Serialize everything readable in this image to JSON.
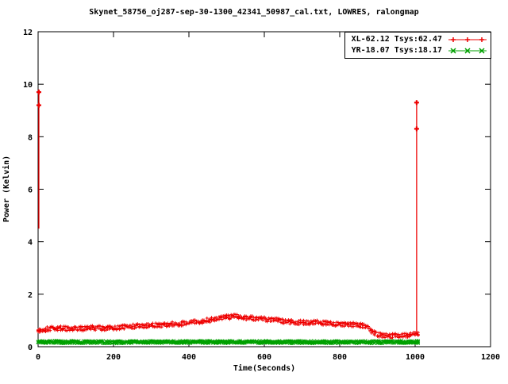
{
  "chart_data": {
    "type": "scatter",
    "title": "Skynet_58756_oj287-sep-30-1300_42341_50987_cal.txt, LOWRES, ralongmap",
    "xlabel": "Time(Seconds)",
    "ylabel": "Power (Kelvin)",
    "xlim": [
      0,
      1200
    ],
    "ylim": [
      0,
      12
    ],
    "xticks": [
      0,
      200,
      400,
      600,
      800,
      1000,
      1200
    ],
    "yticks": [
      0,
      2,
      4,
      6,
      8,
      10,
      12
    ],
    "grid": false,
    "legend_position": "top-right",
    "seed": 42,
    "series": [
      {
        "name": "XL-62.12 Tsys:62.47",
        "color": "#ee0000",
        "marker": "plus",
        "noise": 0.09,
        "step": 4,
        "passes": 3,
        "anchors": [
          [
            0,
            0.62
          ],
          [
            30,
            0.68
          ],
          [
            60,
            0.7
          ],
          [
            100,
            0.68
          ],
          [
            140,
            0.72
          ],
          [
            180,
            0.7
          ],
          [
            220,
            0.74
          ],
          [
            260,
            0.78
          ],
          [
            300,
            0.8
          ],
          [
            340,
            0.84
          ],
          [
            380,
            0.88
          ],
          [
            420,
            0.95
          ],
          [
            460,
            1.02
          ],
          [
            500,
            1.12
          ],
          [
            520,
            1.15
          ],
          [
            550,
            1.1
          ],
          [
            580,
            1.08
          ],
          [
            620,
            1.02
          ],
          [
            660,
            0.96
          ],
          [
            700,
            0.92
          ],
          [
            740,
            0.92
          ],
          [
            780,
            0.88
          ],
          [
            820,
            0.86
          ],
          [
            850,
            0.82
          ],
          [
            870,
            0.78
          ],
          [
            885,
            0.6
          ],
          [
            900,
            0.45
          ],
          [
            930,
            0.4
          ],
          [
            960,
            0.42
          ],
          [
            990,
            0.45
          ],
          [
            1010,
            0.5
          ]
        ],
        "spikes": [
          {
            "x": 2,
            "line": [
              4.5,
              9.8
            ],
            "markers": [
              9.7,
              9.2
            ]
          },
          {
            "x": 1004,
            "line": [
              0.45,
              9.35
            ],
            "markers": [
              9.3,
              8.3
            ]
          }
        ]
      },
      {
        "name": "YR-18.07 Tsys:18.17",
        "color": "#00a000",
        "marker": "cross",
        "noise": 0.05,
        "step": 4,
        "passes": 3,
        "anchors": [
          [
            0,
            0.18
          ],
          [
            200,
            0.17
          ],
          [
            400,
            0.18
          ],
          [
            600,
            0.18
          ],
          [
            800,
            0.17
          ],
          [
            1010,
            0.18
          ]
        ],
        "spikes": []
      }
    ]
  }
}
